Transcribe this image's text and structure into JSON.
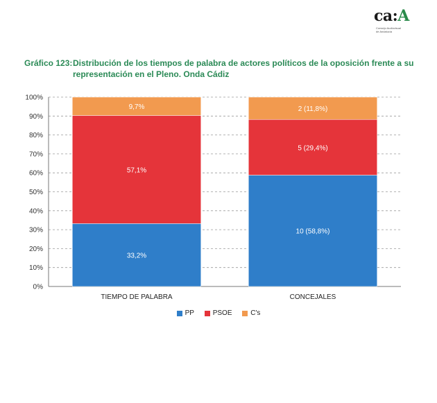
{
  "logo": {
    "main": "ca",
    "accent": "A",
    "sub1": "Consejo Audiovisual",
    "sub2": "de Andalucía"
  },
  "title": {
    "number": "Gráfico 123:",
    "line1": "Distribución de los tiempos de palabra de actores políticos de la oposición frente a su",
    "line2": "representación en el Pleno. Onda Cádiz"
  },
  "colors": {
    "PP": "#2f7ec9",
    "PSOE": "#e5343a",
    "Cs": "#f29a4f",
    "grid": "#9a9a9a",
    "axis": "#777777"
  },
  "chart_data": {
    "type": "bar",
    "stacked": true,
    "categories": [
      "TIEMPO DE PALABRA",
      "CONCEJALES"
    ],
    "series": [
      {
        "name": "PP",
        "values": [
          33.2,
          58.8
        ],
        "labels": [
          "33,2%",
          "10 (58,8%)"
        ]
      },
      {
        "name": "PSOE",
        "values": [
          57.1,
          29.4
        ],
        "labels": [
          "57,1%",
          "5 (29,4%)"
        ]
      },
      {
        "name": "C's",
        "values": [
          9.7,
          11.8
        ],
        "labels": [
          "9,7%",
          "2 (11,8%)"
        ]
      }
    ],
    "ylim": [
      0,
      100
    ],
    "yticks": [
      "0%",
      "10%",
      "20%",
      "30%",
      "40%",
      "50%",
      "60%",
      "70%",
      "80%",
      "90%",
      "100%"
    ],
    "grid": true,
    "legend_position": "bottom"
  }
}
